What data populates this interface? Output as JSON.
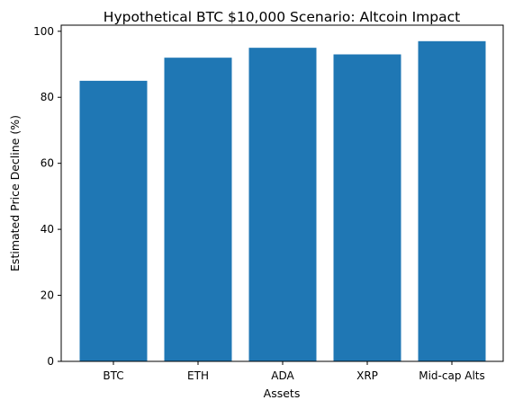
{
  "chart_data": {
    "type": "bar",
    "title": "Hypothetical BTC $10,000 Scenario: Altcoin Impact",
    "xlabel": "Assets",
    "ylabel": "Estimated Price Decline (%)",
    "categories": [
      "BTC",
      "ETH",
      "ADA",
      "XRP",
      "Mid-cap Alts"
    ],
    "values": [
      85,
      92,
      95,
      93,
      97
    ],
    "ylim": [
      0,
      101.85
    ],
    "yticks": [
      0,
      20,
      40,
      60,
      80,
      100
    ],
    "grid": false,
    "legend": "none",
    "colors": {
      "bar": "#1f77b4",
      "axis": "#000000"
    }
  }
}
